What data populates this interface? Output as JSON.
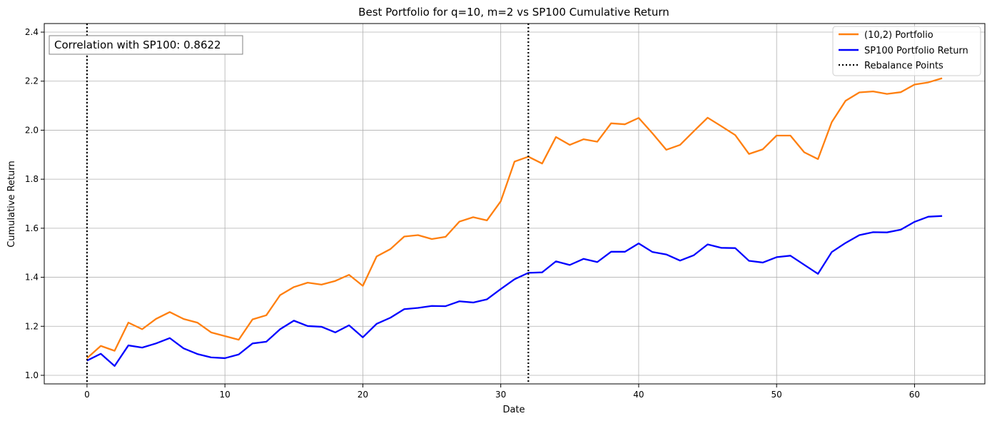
{
  "chart_data": {
    "type": "line",
    "title": "Best Portfolio for q=10, m=2 vs SP100 Cumulative Return",
    "xlabel": "Date",
    "ylabel": "Cumulative Return",
    "xlim": [
      -3.1,
      65.1
    ],
    "ylim": [
      0.965,
      2.435
    ],
    "xticks": [
      0,
      10,
      20,
      30,
      40,
      50,
      60
    ],
    "yticks": [
      1.0,
      1.2,
      1.4,
      1.6,
      1.8,
      2.0,
      2.2,
      2.4
    ],
    "ytick_labels": [
      "1.0",
      "1.2",
      "1.4",
      "1.6",
      "1.8",
      "2.0",
      "2.2",
      "2.4"
    ],
    "grid": true,
    "legend_position": "top-right",
    "x": [
      0,
      1,
      2,
      3,
      4,
      5,
      6,
      7,
      8,
      9,
      10,
      11,
      12,
      13,
      14,
      15,
      16,
      17,
      18,
      19,
      20,
      21,
      22,
      23,
      24,
      25,
      26,
      27,
      28,
      29,
      30,
      31,
      32,
      33,
      34,
      35,
      36,
      37,
      38,
      39,
      40,
      41,
      42,
      43,
      44,
      45,
      46,
      47,
      48,
      49,
      50,
      51,
      52,
      53,
      54,
      55,
      56,
      57,
      58,
      59,
      60,
      61,
      62
    ],
    "series": [
      {
        "name": "(10,2) Portfolio",
        "color": "#ff7f0e",
        "values": [
          1.07,
          1.12,
          1.1,
          1.215,
          1.188,
          1.23,
          1.258,
          1.23,
          1.215,
          1.175,
          1.16,
          1.145,
          1.228,
          1.245,
          1.327,
          1.36,
          1.378,
          1.37,
          1.385,
          1.41,
          1.365,
          1.485,
          1.515,
          1.566,
          1.572,
          1.556,
          1.565,
          1.627,
          1.645,
          1.632,
          1.71,
          1.872,
          1.892,
          1.864,
          1.972,
          1.94,
          1.963,
          1.953,
          2.028,
          2.024,
          2.05,
          1.987,
          1.92,
          1.94,
          1.996,
          2.051,
          2.016,
          1.98,
          1.903,
          1.922,
          1.978,
          1.978,
          1.91,
          1.882,
          2.033,
          2.12,
          2.154,
          2.158,
          2.148,
          2.155,
          2.186,
          2.195,
          2.212
        ]
      },
      {
        "name": "SP100 Portfolio Return",
        "color": "#0000ff",
        "values": [
          1.06,
          1.088,
          1.038,
          1.122,
          1.113,
          1.13,
          1.152,
          1.11,
          1.087,
          1.073,
          1.07,
          1.085,
          1.13,
          1.137,
          1.188,
          1.223,
          1.201,
          1.198,
          1.175,
          1.204,
          1.155,
          1.21,
          1.235,
          1.27,
          1.275,
          1.283,
          1.282,
          1.302,
          1.297,
          1.31,
          1.352,
          1.392,
          1.418,
          1.42,
          1.465,
          1.45,
          1.475,
          1.462,
          1.504,
          1.504,
          1.538,
          1.503,
          1.493,
          1.468,
          1.49,
          1.534,
          1.52,
          1.519,
          1.467,
          1.46,
          1.482,
          1.488,
          1.451,
          1.414,
          1.503,
          1.54,
          1.572,
          1.584,
          1.583,
          1.594,
          1.626,
          1.647,
          1.65
        ]
      }
    ],
    "rebalance_points": [
      0,
      32
    ],
    "rebalance_label": "Rebalance Points",
    "annotation": "Correlation with SP100: 0.8622"
  }
}
